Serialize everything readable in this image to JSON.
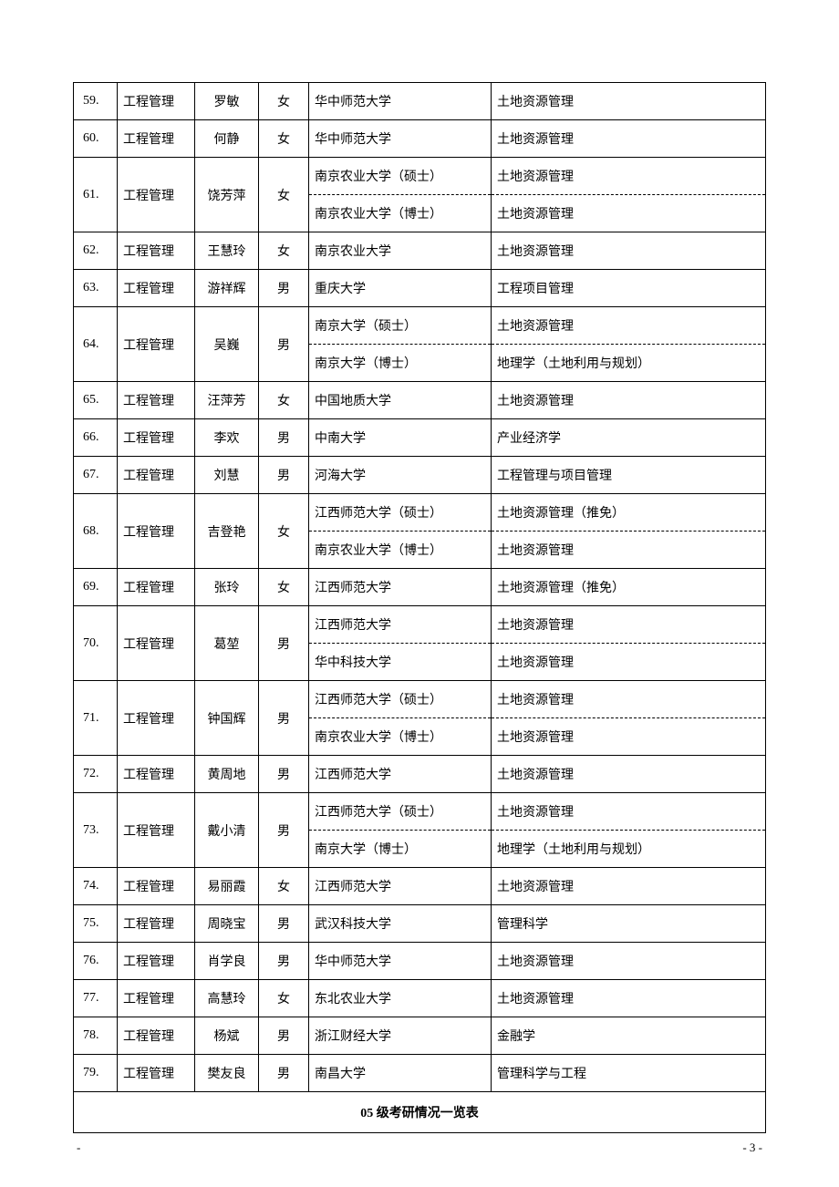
{
  "rows": [
    {
      "num": "59.",
      "major": "工程管理",
      "name": "罗敏",
      "gender": "女",
      "schools": [
        "华中师范大学"
      ],
      "fields": [
        "土地资源管理"
      ]
    },
    {
      "num": "60.",
      "major": "工程管理",
      "name": "何静",
      "gender": "女",
      "schools": [
        "华中师范大学"
      ],
      "fields": [
        "土地资源管理"
      ]
    },
    {
      "num": "61.",
      "major": "工程管理",
      "name": "饶芳萍",
      "gender": "女",
      "schools": [
        "南京农业大学（硕士）",
        "南京农业大学（博士）"
      ],
      "fields": [
        "土地资源管理",
        "土地资源管理"
      ]
    },
    {
      "num": "62.",
      "major": "工程管理",
      "name": "王慧玲",
      "gender": "女",
      "schools": [
        "南京农业大学"
      ],
      "fields": [
        "土地资源管理"
      ]
    },
    {
      "num": "63.",
      "major": "工程管理",
      "name": "游祥辉",
      "gender": "男",
      "schools": [
        "重庆大学"
      ],
      "fields": [
        "工程项目管理"
      ]
    },
    {
      "num": "64.",
      "major": "工程管理",
      "name": "吴巍",
      "gender": "男",
      "schools": [
        "南京大学（硕士）",
        "南京大学（博士）"
      ],
      "fields": [
        "土地资源管理",
        "地理学（土地利用与规划）"
      ]
    },
    {
      "num": "65.",
      "major": "工程管理",
      "name": "汪萍芳",
      "gender": "女",
      "schools": [
        "中国地质大学"
      ],
      "fields": [
        "土地资源管理"
      ]
    },
    {
      "num": "66.",
      "major": "工程管理",
      "name": "李欢",
      "gender": "男",
      "schools": [
        "中南大学"
      ],
      "fields": [
        "产业经济学"
      ]
    },
    {
      "num": "67.",
      "major": "工程管理",
      "name": "刘慧",
      "gender": "男",
      "schools": [
        "河海大学"
      ],
      "fields": [
        "工程管理与项目管理"
      ]
    },
    {
      "num": "68.",
      "major": "工程管理",
      "name": "吉登艳",
      "gender": "女",
      "schools": [
        "江西师范大学（硕士）",
        "南京农业大学（博士）"
      ],
      "fields": [
        "土地资源管理（推免）",
        "土地资源管理"
      ]
    },
    {
      "num": "69.",
      "major": "工程管理",
      "name": "张玲",
      "gender": "女",
      "schools": [
        "江西师范大学"
      ],
      "fields": [
        "土地资源管理（推免）"
      ]
    },
    {
      "num": "70.",
      "major": "工程管理",
      "name": "葛堃",
      "gender": "男",
      "schools": [
        "江西师范大学",
        "华中科技大学"
      ],
      "fields": [
        "土地资源管理",
        "土地资源管理"
      ]
    },
    {
      "num": "71.",
      "major": "工程管理",
      "name": "钟国辉",
      "gender": "男",
      "schools": [
        "江西师范大学（硕士）",
        "南京农业大学（博士）"
      ],
      "fields": [
        "土地资源管理",
        "土地资源管理"
      ]
    },
    {
      "num": "72.",
      "major": "工程管理",
      "name": "黄周地",
      "gender": "男",
      "schools": [
        "江西师范大学"
      ],
      "fields": [
        "土地资源管理"
      ]
    },
    {
      "num": "73.",
      "major": "工程管理",
      "name": "戴小清",
      "gender": "男",
      "schools": [
        "江西师范大学（硕士）",
        "南京大学（博士）"
      ],
      "fields": [
        "土地资源管理",
        "地理学（土地利用与规划）"
      ]
    },
    {
      "num": "74.",
      "major": "工程管理",
      "name": "易丽霞",
      "gender": "女",
      "schools": [
        "江西师范大学"
      ],
      "fields": [
        "土地资源管理"
      ]
    },
    {
      "num": "75.",
      "major": "工程管理",
      "name": "周晓宝",
      "gender": "男",
      "schools": [
        "武汉科技大学"
      ],
      "fields": [
        "管理科学"
      ]
    },
    {
      "num": "76.",
      "major": "工程管理",
      "name": "肖学良",
      "gender": "男",
      "schools": [
        "华中师范大学"
      ],
      "fields": [
        "土地资源管理"
      ]
    },
    {
      "num": "77.",
      "major": "工程管理",
      "name": "高慧玲",
      "gender": "女",
      "schools": [
        "东北农业大学"
      ],
      "fields": [
        "土地资源管理"
      ]
    },
    {
      "num": "78.",
      "major": "工程管理",
      "name": "杨斌",
      "gender": "男",
      "schools": [
        "浙江财经大学"
      ],
      "fields": [
        "金融学"
      ]
    },
    {
      "num": "79.",
      "major": "工程管理",
      "name": "樊友良",
      "gender": "男",
      "schools": [
        "南昌大学"
      ],
      "fields": [
        "管理科学与工程"
      ]
    }
  ],
  "footer_title": "05 级考研情况一览表",
  "page_footer_left": "-",
  "page_footer_right": "- 3 -"
}
